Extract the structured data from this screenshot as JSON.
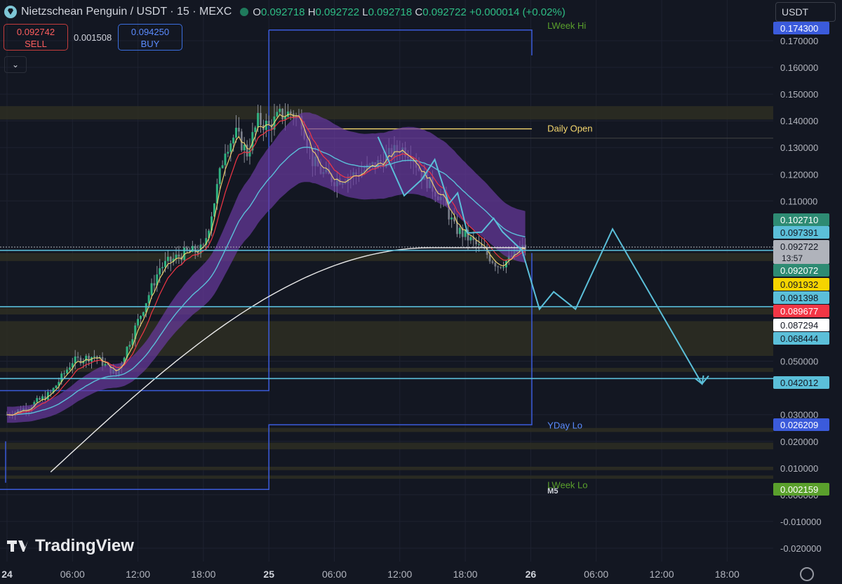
{
  "header": {
    "symbol": "Nietzschean Penguin / USDT · 15 · MEXC",
    "o_label": "O",
    "o": "0.092718",
    "h_label": "H",
    "h": "0.092722",
    "l_label": "L",
    "l": "0.092718",
    "c_label": "C",
    "c": "0.092722",
    "change": "+0.000014 (+0.02%)"
  },
  "trade": {
    "sell_price": "0.092742",
    "sell_label": "SELL",
    "spread": "0.001508",
    "buy_price": "0.094250",
    "buy_label": "BUY"
  },
  "currency_select": "USDT",
  "watermark": "TradingView",
  "colors": {
    "background": "#131722",
    "up": "#2ebd85",
    "down": "#f23645",
    "cyan": "#5bbfd9",
    "purple_band": "#6a3aa0",
    "white_ma": "#e8e8e8",
    "zone": "#3a3a2a",
    "blue_level": "#3b5bdb",
    "gold": "#f5d76e"
  },
  "chart_data": {
    "type": "candlestick",
    "y_axis": {
      "min": -0.025,
      "max": 0.178,
      "ticks": [
        0.17,
        0.16,
        0.15,
        0.14,
        0.13,
        0.12,
        0.11,
        0.05,
        0.03,
        0.02,
        0.01,
        0.0,
        -0.01,
        -0.02
      ],
      "tick_labels": [
        "0.170000",
        "0.160000",
        "0.150000",
        "0.140000",
        "0.130000",
        "0.120000",
        "0.110000",
        "0.050000",
        "0.030000",
        "0.020000",
        "0.010000",
        "0.000000",
        "-0.010000",
        "-0.020000"
      ]
    },
    "x_axis": {
      "ticks": [
        {
          "label": "24",
          "hour": 0
        },
        {
          "label": "06:00",
          "hour": 6
        },
        {
          "label": "12:00",
          "hour": 12
        },
        {
          "label": "18:00",
          "hour": 18
        },
        {
          "label": "25",
          "hour": 24
        },
        {
          "label": "06:00",
          "hour": 30
        },
        {
          "label": "12:00",
          "hour": 36
        },
        {
          "label": "18:00",
          "hour": 42
        },
        {
          "label": "26",
          "hour": 48
        },
        {
          "label": "06:00",
          "hour": 54
        },
        {
          "label": "12:00",
          "hour": 60
        },
        {
          "label": "18:00",
          "hour": 66
        }
      ],
      "range_hours": [
        0,
        70
      ]
    },
    "price_line": {
      "value": 0.092722,
      "countdown": "13:57"
    },
    "price_tags": [
      {
        "value": 0.1743,
        "label": "0.174300",
        "bg": "#3b5bdb",
        "fg": "#ffffff"
      },
      {
        "value": 0.10271,
        "label": "0.102710",
        "bg": "#2e8b73",
        "fg": "#ffffff"
      },
      {
        "value": 0.097391,
        "label": "0.097391",
        "bg": "#5bbfd9",
        "fg": "#131722"
      },
      {
        "value": 0.092722,
        "label": "0.092722",
        "bg": "#b0b3bb",
        "fg": "#131722"
      },
      {
        "value": 0.092072,
        "label": "0.092072",
        "bg": "#2e8b73",
        "fg": "#ffffff"
      },
      {
        "value": 0.091932,
        "label": "0.091932",
        "bg": "#f5d400",
        "fg": "#131722"
      },
      {
        "value": 0.091398,
        "label": "0.091398",
        "bg": "#5bbfd9",
        "fg": "#131722"
      },
      {
        "value": 0.089677,
        "label": "0.089677",
        "bg": "#f23645",
        "fg": "#ffffff"
      },
      {
        "value": 0.087294,
        "label": "0.087294",
        "bg": "#ffffff",
        "fg": "#131722"
      },
      {
        "value": 0.068444,
        "label": "0.068444",
        "bg": "#5bbfd9",
        "fg": "#131722"
      },
      {
        "value": 0.042012,
        "label": "0.042012",
        "bg": "#5bbfd9",
        "fg": "#131722"
      },
      {
        "value": 0.026209,
        "label": "0.026209",
        "bg": "#3b5bdb",
        "fg": "#ffffff"
      },
      {
        "value": 0.002159,
        "label": "0.002159",
        "bg": "#5aa02c",
        "fg": "#ffffff"
      }
    ],
    "horizontal_levels": [
      {
        "value": 0.0915,
        "color": "#5bbfd9"
      },
      {
        "value": 0.0704,
        "color": "#5bbfd9"
      },
      {
        "value": 0.0435,
        "color": "#5bbfd9"
      }
    ],
    "annotations": [
      {
        "text": "Daily Open",
        "value": 0.137,
        "hour": 48.5,
        "color": "#f5d76e"
      },
      {
        "text": "YDay Lo",
        "value": 0.0258,
        "hour": 48.5,
        "color": "#5b8cff"
      },
      {
        "text": "LWeek Hi",
        "value": 0.1755,
        "hour": 48.5,
        "color": "#5aa02c"
      },
      {
        "text": "LWeek Lo",
        "value": 0.0035,
        "hour": 48.5,
        "color": "#5aa02c"
      },
      {
        "text": "M5",
        "value": 0.0015,
        "hour": 48.5,
        "color": "#d1d4dc"
      }
    ],
    "projection_path": [
      {
        "hour": 34,
        "value": 0.134
      },
      {
        "hour": 36.4,
        "value": 0.112
      },
      {
        "hour": 38,
        "value": 0.118
      },
      {
        "hour": 39.2,
        "value": 0.1255
      },
      {
        "hour": 40.5,
        "value": 0.109
      },
      {
        "hour": 41.3,
        "value": 0.113
      },
      {
        "hour": 42.2,
        "value": 0.098
      },
      {
        "hour": 43.5,
        "value": 0.0983
      },
      {
        "hour": 44.6,
        "value": 0.1035
      },
      {
        "hour": 45.4,
        "value": 0.0985
      },
      {
        "hour": 47.2,
        "value": 0.0915
      },
      {
        "hour": 48.8,
        "value": 0.0695
      },
      {
        "hour": 50.1,
        "value": 0.076
      },
      {
        "hour": 52.1,
        "value": 0.0695
      },
      {
        "hour": 55.5,
        "value": 0.0995
      },
      {
        "hour": 63.7,
        "value": 0.0415
      },
      {
        "hour": 64.3,
        "value": 0.0445
      }
    ],
    "indicators": [
      "EMA fast (gold)",
      "EMA (red)",
      "EMA band (purple)",
      "EMA (cyan)",
      "MA 200 (white)"
    ]
  }
}
